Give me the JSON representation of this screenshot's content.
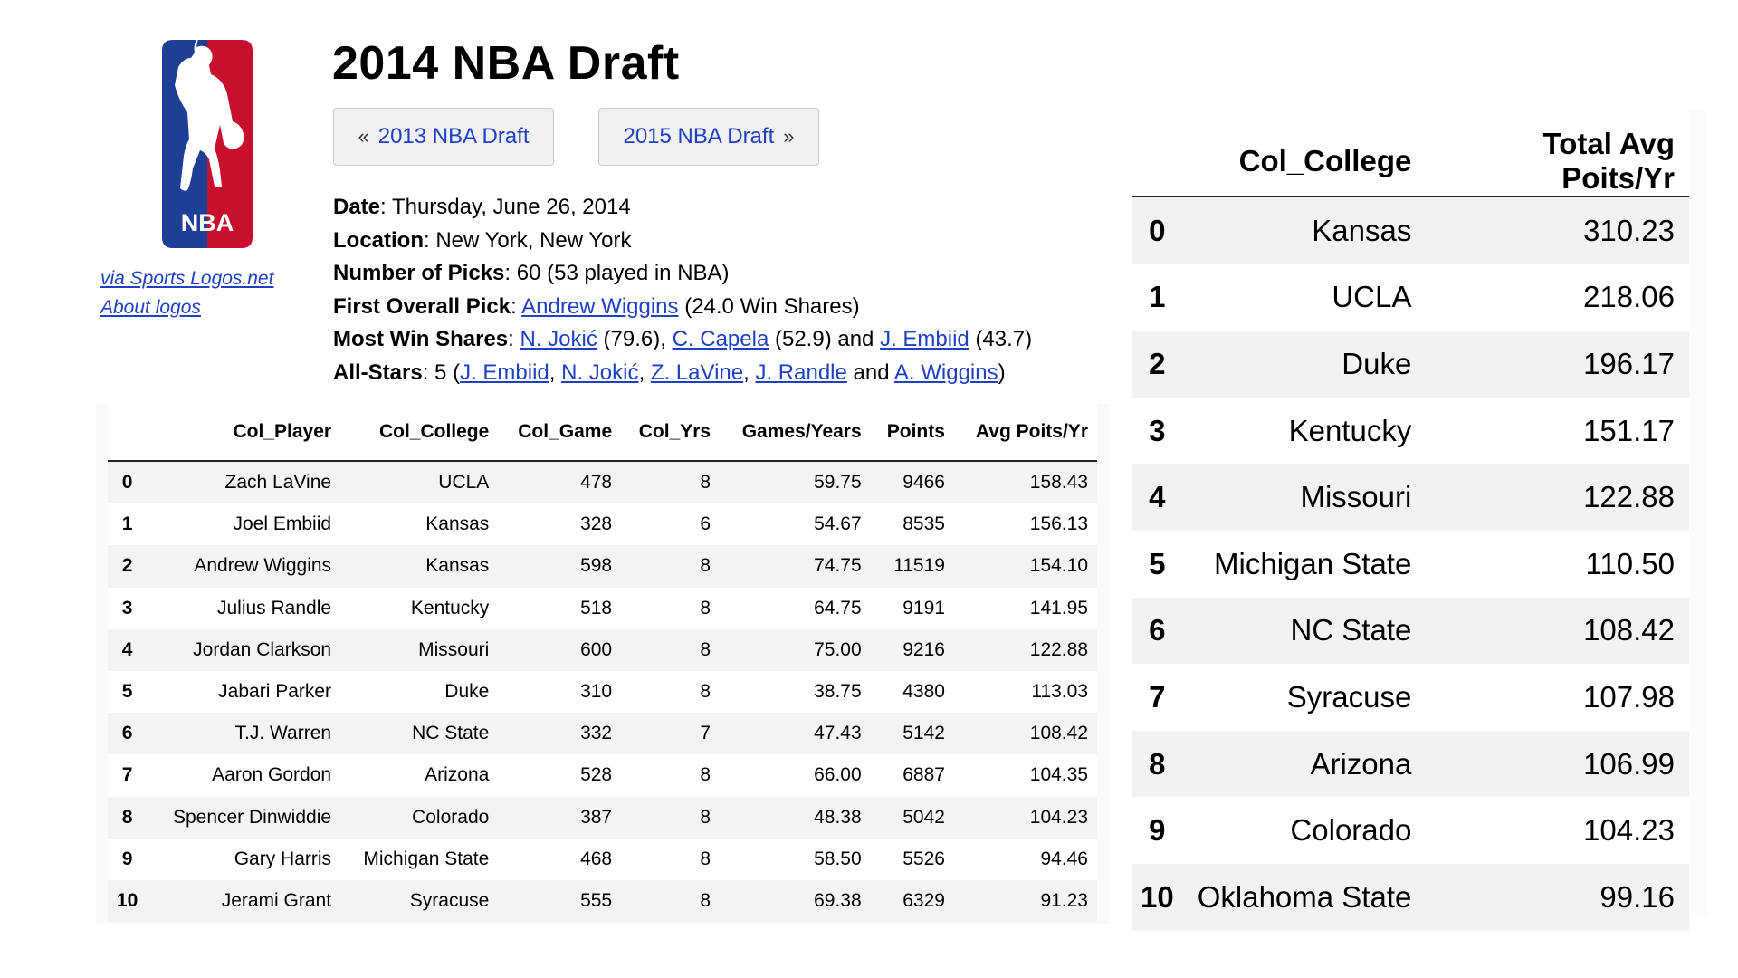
{
  "logo": {
    "text": "NBA",
    "credit_link": "via Sports Logos.net",
    "about_link": "About logos",
    "colors": {
      "blue": "#1d3f95",
      "red": "#c8102e"
    }
  },
  "header": {
    "title": "2014 NBA Draft",
    "prev_arrow": "«",
    "prev_label": "2013 NBA Draft",
    "next_label": "2015 NBA Draft",
    "next_arrow": "»"
  },
  "info": {
    "date_label": "Date",
    "date_value": "Thursday, June 26, 2014",
    "location_label": "Location",
    "location_value": "New York, New York",
    "picks_label": "Number of Picks",
    "picks_value": "60 (53 played in NBA)",
    "first_pick_label": "First Overall Pick",
    "first_pick_link": "Andrew Wiggins",
    "first_pick_suffix": "(24.0 Win Shares)",
    "win_shares_label": "Most Win Shares",
    "win_shares": [
      {
        "name": "N. Jokić",
        "value": "(79.6),"
      },
      {
        "name": "C. Capela",
        "value": "(52.9) and"
      },
      {
        "name": "J. Embiid",
        "value": "(43.7)"
      }
    ],
    "all_stars_label": "All-Stars",
    "all_stars_count": "5 (",
    "all_stars": [
      {
        "name": "J. Embiid",
        "sep": ","
      },
      {
        "name": "N. Jokić",
        "sep": ","
      },
      {
        "name": "Z. LaVine",
        "sep": ","
      },
      {
        "name": "J. Randle",
        "sep": " and"
      },
      {
        "name": "A. Wiggins",
        "sep": ")"
      }
    ]
  },
  "players_table": {
    "columns": [
      "",
      "Col_Player",
      "Col_College",
      "Col_Game",
      "Col_Yrs",
      "Games/Years",
      "Points",
      "Avg Poits/Yr"
    ],
    "rows": [
      [
        "0",
        "Zach LaVine",
        "UCLA",
        "478",
        "8",
        "59.75",
        "9466",
        "158.43"
      ],
      [
        "1",
        "Joel Embiid",
        "Kansas",
        "328",
        "6",
        "54.67",
        "8535",
        "156.13"
      ],
      [
        "2",
        "Andrew Wiggins",
        "Kansas",
        "598",
        "8",
        "74.75",
        "11519",
        "154.10"
      ],
      [
        "3",
        "Julius Randle",
        "Kentucky",
        "518",
        "8",
        "64.75",
        "9191",
        "141.95"
      ],
      [
        "4",
        "Jordan Clarkson",
        "Missouri",
        "600",
        "8",
        "75.00",
        "9216",
        "122.88"
      ],
      [
        "5",
        "Jabari Parker",
        "Duke",
        "310",
        "8",
        "38.75",
        "4380",
        "113.03"
      ],
      [
        "6",
        "T.J. Warren",
        "NC State",
        "332",
        "7",
        "47.43",
        "5142",
        "108.42"
      ],
      [
        "7",
        "Aaron Gordon",
        "Arizona",
        "528",
        "8",
        "66.00",
        "6887",
        "104.35"
      ],
      [
        "8",
        "Spencer Dinwiddie",
        "Colorado",
        "387",
        "8",
        "48.38",
        "5042",
        "104.23"
      ],
      [
        "9",
        "Gary Harris",
        "Michigan State",
        "468",
        "8",
        "58.50",
        "5526",
        "94.46"
      ],
      [
        "10",
        "Jerami Grant",
        "Syracuse",
        "555",
        "8",
        "69.38",
        "6329",
        "91.23"
      ]
    ]
  },
  "college_table": {
    "columns": [
      "",
      "Col_College",
      "Total Avg Poits/Yr"
    ],
    "rows": [
      [
        "0",
        "Kansas",
        "310.23"
      ],
      [
        "1",
        "UCLA",
        "218.06"
      ],
      [
        "2",
        "Duke",
        "196.17"
      ],
      [
        "3",
        "Kentucky",
        "151.17"
      ],
      [
        "4",
        "Missouri",
        "122.88"
      ],
      [
        "5",
        "Michigan State",
        "110.50"
      ],
      [
        "6",
        "NC State",
        "108.42"
      ],
      [
        "7",
        "Syracuse",
        "107.98"
      ],
      [
        "8",
        "Arizona",
        "106.99"
      ],
      [
        "9",
        "Colorado",
        "104.23"
      ],
      [
        "10",
        "Oklahoma State",
        "99.16"
      ]
    ]
  }
}
